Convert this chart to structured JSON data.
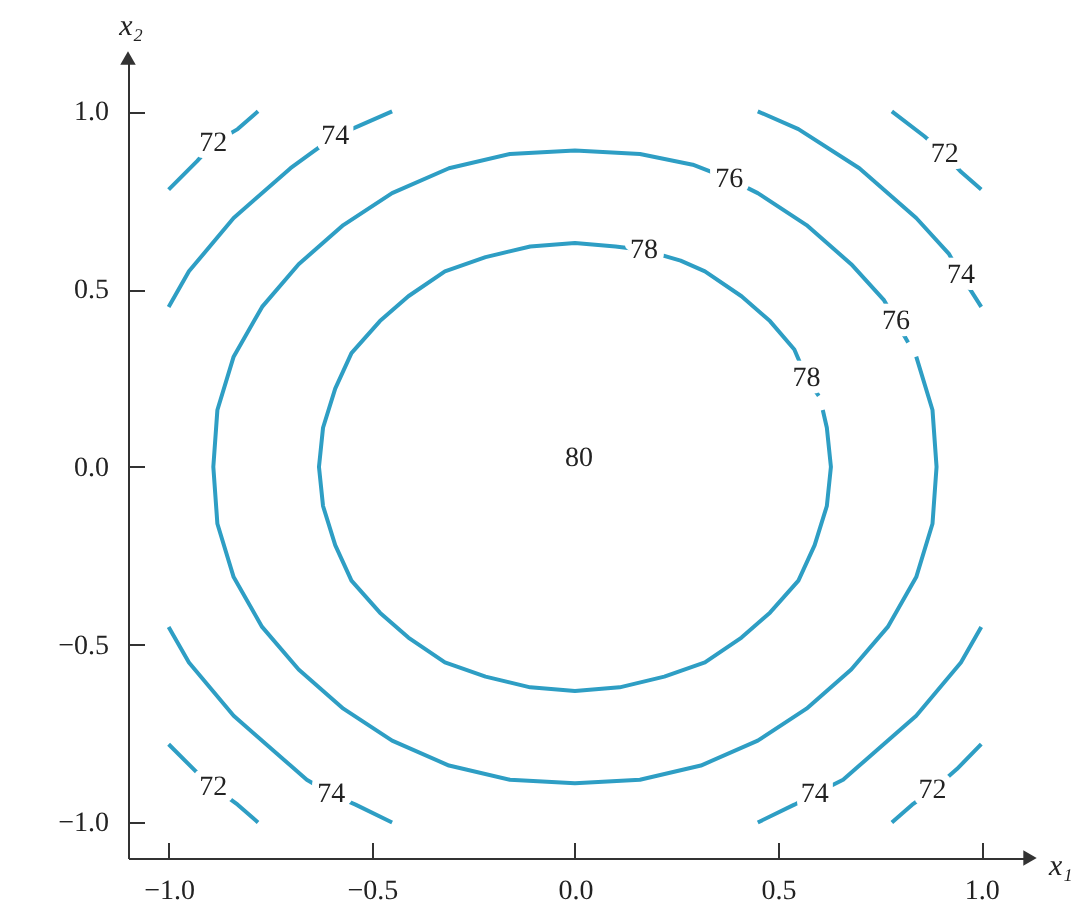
{
  "chart_data": {
    "type": "line",
    "xlabel": "x₁",
    "ylabel": "x₂",
    "xlim": [
      -1.1,
      1.12
    ],
    "ylim": [
      -1.1,
      1.15
    ],
    "xticks": [
      {
        "value": -1,
        "label": "−1.0"
      },
      {
        "value": -0.5,
        "label": "−0.5"
      },
      {
        "value": 0,
        "label": "0.0"
      },
      0.5,
      {
        "value": 1,
        "label": "1.0"
      }
    ],
    "yticks": [
      {
        "value": -1,
        "label": "−1.0"
      },
      {
        "value": -0.5,
        "label": "−0.5"
      },
      {
        "value": 0,
        "label": "0.0"
      },
      0.5,
      {
        "value": 1,
        "label": "1.0"
      }
    ],
    "series": [
      {
        "color": "#2e9ec4",
        "x": [
          -1.0,
          -0.93,
          -0.89,
          -0.83,
          -0.78,
          null,
          0.78,
          0.86,
          0.91,
          0.95,
          1.0
        ],
        "values": [
          0.78,
          0.86,
          0.91,
          0.95,
          1.0,
          null,
          1.0,
          0.93,
          0.88,
          0.83,
          0.78
        ]
      },
      {
        "color": "#2e9ec4",
        "x": [
          -1.0,
          -0.93,
          -0.89,
          -0.83,
          -0.78,
          null,
          0.78,
          0.83,
          0.88,
          0.94,
          1.0
        ],
        "values": [
          -0.78,
          -0.86,
          -0.9,
          -0.95,
          -1.0,
          null,
          -1.0,
          -0.95,
          -0.91,
          -0.85,
          -0.78
        ]
      },
      {
        "color": "#2e9ec4",
        "x": [
          -1.0,
          -0.95,
          -0.84,
          -0.7,
          -0.64,
          -0.59,
          -0.53,
          -0.45,
          null,
          0.45,
          0.55,
          0.7,
          0.84,
          0.92,
          0.95,
          1.0
        ],
        "values": [
          0.45,
          0.55,
          0.7,
          0.84,
          0.89,
          0.93,
          0.96,
          1.0,
          null,
          1.0,
          0.95,
          0.84,
          0.7,
          0.6,
          0.54,
          0.45
        ]
      },
      {
        "color": "#2e9ec4",
        "x": [
          -1.0,
          -0.95,
          -0.84,
          -0.7,
          -0.66,
          -0.6,
          -0.54,
          -0.45,
          null,
          0.45,
          0.54,
          0.59,
          0.66,
          0.7,
          0.84,
          0.95,
          1.0
        ],
        "values": [
          -0.45,
          -0.55,
          -0.7,
          -0.84,
          -0.88,
          -0.92,
          -0.95,
          -1.0,
          null,
          -1.0,
          -0.95,
          -0.92,
          -0.88,
          -0.84,
          -0.7,
          -0.55,
          -0.45
        ]
      },
      {
        "color": "#2e9ec4",
        "x": [
          0.84,
          0.88,
          0.89,
          0.88,
          0.84,
          0.77,
          0.68,
          0.57,
          0.45,
          0.31,
          0.16,
          0,
          -0.16,
          -0.31,
          -0.45,
          -0.57,
          -0.68,
          -0.77,
          -0.84,
          -0.88,
          -0.89,
          -0.88,
          -0.84,
          -0.77,
          -0.68,
          -0.57,
          -0.45,
          -0.31,
          -0.16,
          0,
          0.16,
          0.29,
          0.38,
          0.45,
          0.57,
          0.68,
          0.76,
          0.79,
          0.82
        ],
        "values": [
          0.31,
          0.16,
          0,
          -0.16,
          -0.31,
          -0.45,
          -0.57,
          -0.68,
          -0.77,
          -0.84,
          -0.88,
          -0.89,
          -0.88,
          -0.84,
          -0.77,
          -0.68,
          -0.57,
          -0.45,
          -0.31,
          -0.16,
          0,
          0.16,
          0.31,
          0.45,
          0.57,
          0.68,
          0.77,
          0.84,
          0.88,
          0.89,
          0.88,
          0.85,
          0.81,
          0.77,
          0.68,
          0.57,
          0.47,
          0.41,
          0.35
        ]
      },
      {
        "color": "#2e9ec4",
        "x": [
          0.61,
          0.62,
          0.63,
          0.62,
          0.59,
          0.55,
          0.48,
          0.41,
          0.32,
          0.22,
          0.11,
          0,
          -0.11,
          -0.22,
          -0.32,
          -0.41,
          -0.48,
          -0.55,
          -0.59,
          -0.62,
          -0.63,
          -0.62,
          -0.59,
          -0.55,
          -0.48,
          -0.41,
          -0.32,
          -0.22,
          -0.11,
          0,
          0.1,
          0.17,
          0.26,
          0.32,
          0.41,
          0.48,
          0.54,
          0.57,
          0.6
        ],
        "values": [
          0.16,
          0.11,
          0,
          -0.11,
          -0.22,
          -0.32,
          -0.41,
          -0.48,
          -0.55,
          -0.59,
          -0.62,
          -0.63,
          -0.62,
          -0.59,
          -0.55,
          -0.48,
          -0.41,
          -0.32,
          -0.22,
          -0.11,
          0,
          0.11,
          0.22,
          0.32,
          0.41,
          0.48,
          0.55,
          0.59,
          0.62,
          0.63,
          0.62,
          0.61,
          0.58,
          0.55,
          0.48,
          0.41,
          0.33,
          0.25,
          0.2
        ]
      }
    ],
    "annotations": [
      {
        "text": "72",
        "x": -0.89,
        "y": 0.91
      },
      {
        "text": "72",
        "x": 0.91,
        "y": 0.88
      },
      {
        "text": "72",
        "x": -0.89,
        "y": -0.9
      },
      {
        "text": "72",
        "x": 0.88,
        "y": -0.91
      },
      {
        "text": "74",
        "x": -0.59,
        "y": 0.93
      },
      {
        "text": "74",
        "x": 0.95,
        "y": 0.54
      },
      {
        "text": "74",
        "x": -0.6,
        "y": -0.92
      },
      {
        "text": "74",
        "x": 0.59,
        "y": -0.92
      },
      {
        "text": "76",
        "x": 0.38,
        "y": 0.81
      },
      {
        "text": "76",
        "x": 0.79,
        "y": 0.41
      },
      {
        "text": "78",
        "x": 0.17,
        "y": 0.61
      },
      {
        "text": "78",
        "x": 0.57,
        "y": 0.25
      },
      "80"
    ]
  }
}
